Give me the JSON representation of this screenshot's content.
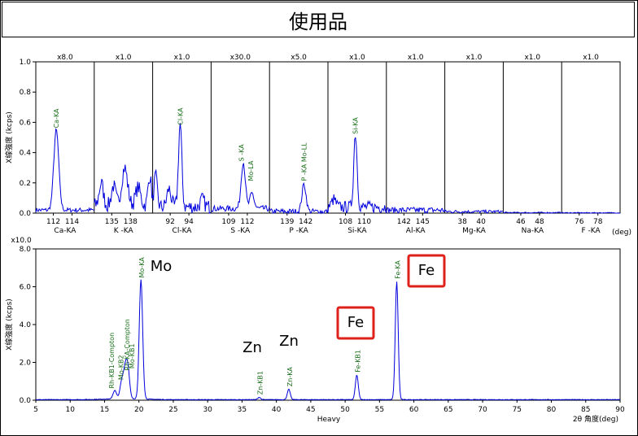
{
  "page_title": "使用品",
  "chart_data": [
    {
      "type": "line",
      "title": "",
      "ylabel": "X線強度 (kcps)",
      "xlabel": "(deg)",
      "ylim": [
        0,
        1.0
      ],
      "yticks": [
        "1.0",
        "0.8",
        "0.6",
        "0.4",
        "0.2",
        "0.0"
      ],
      "grid": false,
      "line_color": "#0000dd",
      "label_color": "#1a6e1a",
      "panels": [
        {
          "scale": "x8.0",
          "element": "Ca-KA",
          "ticks": [
            "112",
            "114"
          ],
          "peaks": [
            {
              "label": "Ca-KA",
              "intensity": 0.53
            }
          ]
        },
        {
          "scale": "x1.0",
          "element": "K -KA",
          "ticks": [
            "135",
            "138"
          ],
          "peaks": []
        },
        {
          "scale": "x1.0",
          "element": "Cl-KA",
          "ticks": [
            "92",
            "94"
          ],
          "peaks": [
            {
              "label": "Cl-KA",
              "intensity": 0.55
            }
          ]
        },
        {
          "scale": "x30.0",
          "element": "S -KA",
          "ticks": [
            "109",
            "112"
          ],
          "peaks": [
            {
              "label": "S -KA",
              "intensity": 0.31
            },
            {
              "label": "Mo-LA",
              "intensity": 0.18
            }
          ]
        },
        {
          "scale": "x5.0",
          "element": "P -KA",
          "ticks": [
            "139",
            "142"
          ],
          "peaks": [
            {
              "label": "P -KA Mo-LL",
              "intensity": 0.18
            }
          ]
        },
        {
          "scale": "x1.0",
          "element": "Si-KA",
          "ticks": [
            "108",
            "110"
          ],
          "peaks": [
            {
              "label": "Si-KA",
              "intensity": 0.49
            }
          ]
        },
        {
          "scale": "x1.0",
          "element": "Al-KA",
          "ticks": [
            "142",
            "145"
          ],
          "peaks": []
        },
        {
          "scale": "x1.0",
          "element": "Mg-KA",
          "ticks": [
            "38",
            "40"
          ],
          "peaks": []
        },
        {
          "scale": "x1.0",
          "element": "Na-KA",
          "ticks": [
            "46",
            "48"
          ],
          "peaks": []
        },
        {
          "scale": "x1.0",
          "element": "F -KA",
          "ticks": [
            "76",
            "78"
          ],
          "peaks": []
        }
      ]
    },
    {
      "type": "line",
      "title": "",
      "multiplier": "x10.0",
      "ylabel": "X線強度 (kcps)",
      "xlabel": "2θ 角度(deg)",
      "center_label": "Heavy",
      "xlim": [
        5,
        90
      ],
      "ylim": [
        0,
        8.0
      ],
      "xticks": [
        5,
        10,
        15,
        20,
        25,
        30,
        35,
        40,
        45,
        50,
        55,
        60,
        65,
        70,
        75,
        80,
        85,
        90
      ],
      "yticks": [
        "8.0",
        "6.0",
        "4.0",
        "2.0",
        "0.0"
      ],
      "grid": false,
      "line_color": "#0000dd",
      "label_color": "#1a6e1a",
      "peaks": [
        {
          "x": 16.5,
          "y": 0.45,
          "label": "Rh-KB1-Compton"
        },
        {
          "x": 17.5,
          "y": 0.9,
          "label": "Mo-KB2"
        },
        {
          "x": 18.0,
          "y": 1.4,
          "label": "Rh-KA-Compton"
        },
        {
          "x": 18.4,
          "y": 1.5,
          "label": "Mo-KB1"
        },
        {
          "x": 20.3,
          "y": 6.3,
          "label": "Mo-KA"
        },
        {
          "x": 37.5,
          "y": 0.12,
          "label": "Zn-KB1"
        },
        {
          "x": 41.8,
          "y": 0.55,
          "label": "Zn-KA"
        },
        {
          "x": 51.7,
          "y": 1.3,
          "label": "Fe-KB1"
        },
        {
          "x": 57.5,
          "y": 6.25,
          "label": "Fe-KA"
        }
      ],
      "annotations": [
        {
          "text": "Mo",
          "boxed": false
        },
        {
          "text": "Zn",
          "boxed": false
        },
        {
          "text": "Zn",
          "boxed": false
        },
        {
          "text": "Fe",
          "boxed": true,
          "box_color": "#e0201a"
        },
        {
          "text": "Fe",
          "boxed": true,
          "box_color": "#e0201a"
        }
      ]
    }
  ]
}
